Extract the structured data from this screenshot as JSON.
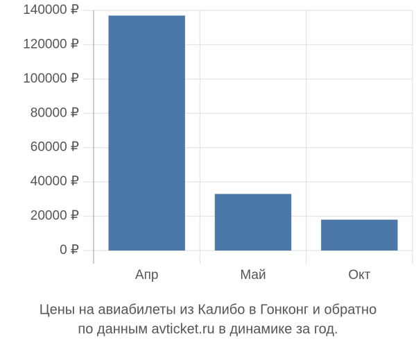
{
  "chart_data": {
    "type": "bar",
    "title": "Цены на авиабилеты из Калибо в Гонконг и обратно",
    "subtitle": "по данным avticket.ru в динамике за год.",
    "categories": [
      "Апр",
      "Май",
      "Окт"
    ],
    "values": [
      137000,
      33000,
      18000
    ],
    "color": "#4c78a8",
    "ylim": [
      0,
      140000
    ],
    "yticks": [
      {
        "value": 0,
        "label": "0 ₽"
      },
      {
        "value": 20000,
        "label": "20000 ₽"
      },
      {
        "value": 40000,
        "label": "40000 ₽"
      },
      {
        "value": 60000,
        "label": "60000 ₽"
      },
      {
        "value": 80000,
        "label": "80000 ₽"
      },
      {
        "value": 100000,
        "label": "100000 ₽"
      },
      {
        "value": 120000,
        "label": "120000 ₽"
      },
      {
        "value": 140000,
        "label": "140000 ₽"
      }
    ],
    "grid": true
  }
}
